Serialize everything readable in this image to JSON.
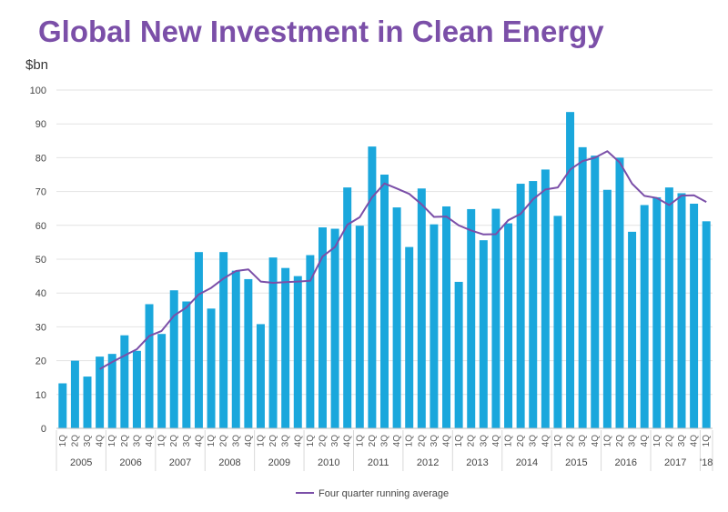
{
  "chart_data": {
    "type": "bar",
    "title": "Global New Investment in Clean Energy",
    "ylabel": "$bn",
    "ylim": [
      0,
      100
    ],
    "yticks": [
      0,
      10,
      20,
      30,
      40,
      50,
      60,
      70,
      80,
      90,
      100
    ],
    "grid": true,
    "legend_position": "bottom",
    "colors": {
      "bars": "#1aa7dc",
      "line": "#7b4fa8",
      "grid": "#e3e3e3"
    },
    "categories": [
      "1Q",
      "2Q",
      "3Q",
      "4Q",
      "1Q",
      "2Q",
      "3Q",
      "4Q",
      "1Q",
      "2Q",
      "3Q",
      "4Q",
      "1Q",
      "2Q",
      "3Q",
      "4Q",
      "1Q",
      "2Q",
      "3Q",
      "4Q",
      "1Q",
      "2Q",
      "3Q",
      "4Q",
      "1Q",
      "2Q",
      "3Q",
      "4Q",
      "1Q",
      "2Q",
      "3Q",
      "4Q",
      "1Q",
      "2Q",
      "3Q",
      "4Q",
      "1Q",
      "2Q",
      "3Q",
      "4Q",
      "1Q",
      "2Q",
      "3Q",
      "4Q",
      "1Q",
      "2Q",
      "3Q",
      "4Q",
      "1Q",
      "2Q",
      "3Q",
      "4Q",
      "1Q"
    ],
    "years": [
      "2005",
      "2006",
      "2007",
      "2008",
      "2009",
      "2010",
      "2011",
      "2012",
      "2013",
      "2014",
      "2015",
      "2016",
      "2017",
      "'18"
    ],
    "series": [
      {
        "type": "bar",
        "values": [
          13.3,
          20.0,
          15.3,
          21.2,
          22.0,
          27.5,
          22.9,
          36.7,
          27.9,
          40.8,
          37.5,
          52.1,
          35.4,
          52.1,
          46.6,
          44.1,
          30.8,
          50.5,
          47.4,
          45.0,
          51.2,
          59.4,
          59.0,
          71.2,
          59.9,
          83.3,
          75.0,
          65.3,
          53.6,
          70.9,
          60.3,
          65.6,
          43.3,
          64.8,
          55.6,
          64.9,
          60.6,
          72.3,
          73.1,
          76.5,
          62.8,
          93.5,
          83.1,
          80.6,
          70.5,
          80.0,
          58.1,
          66.0,
          68.3,
          71.2,
          69.5,
          66.4,
          61.2
        ]
      },
      {
        "type": "line",
        "name": "Four quarter running average",
        "values": [
          null,
          null,
          null,
          17.5,
          19.6,
          21.5,
          23.4,
          27.3,
          28.8,
          33.3,
          35.7,
          39.6,
          41.5,
          44.3,
          46.5,
          47.0,
          43.4,
          43.0,
          43.2,
          43.4,
          43.6,
          50.8,
          53.6,
          60.2,
          62.4,
          68.3,
          72.4,
          70.9,
          69.3,
          66.2,
          62.5,
          62.6,
          60.0,
          58.5,
          57.3,
          57.4,
          61.5,
          63.4,
          67.7,
          70.6,
          71.2,
          76.5,
          79.0,
          80.0,
          81.9,
          78.6,
          72.3,
          68.7,
          68.1,
          66.0,
          68.8,
          68.9,
          66.9
        ]
      }
    ]
  }
}
